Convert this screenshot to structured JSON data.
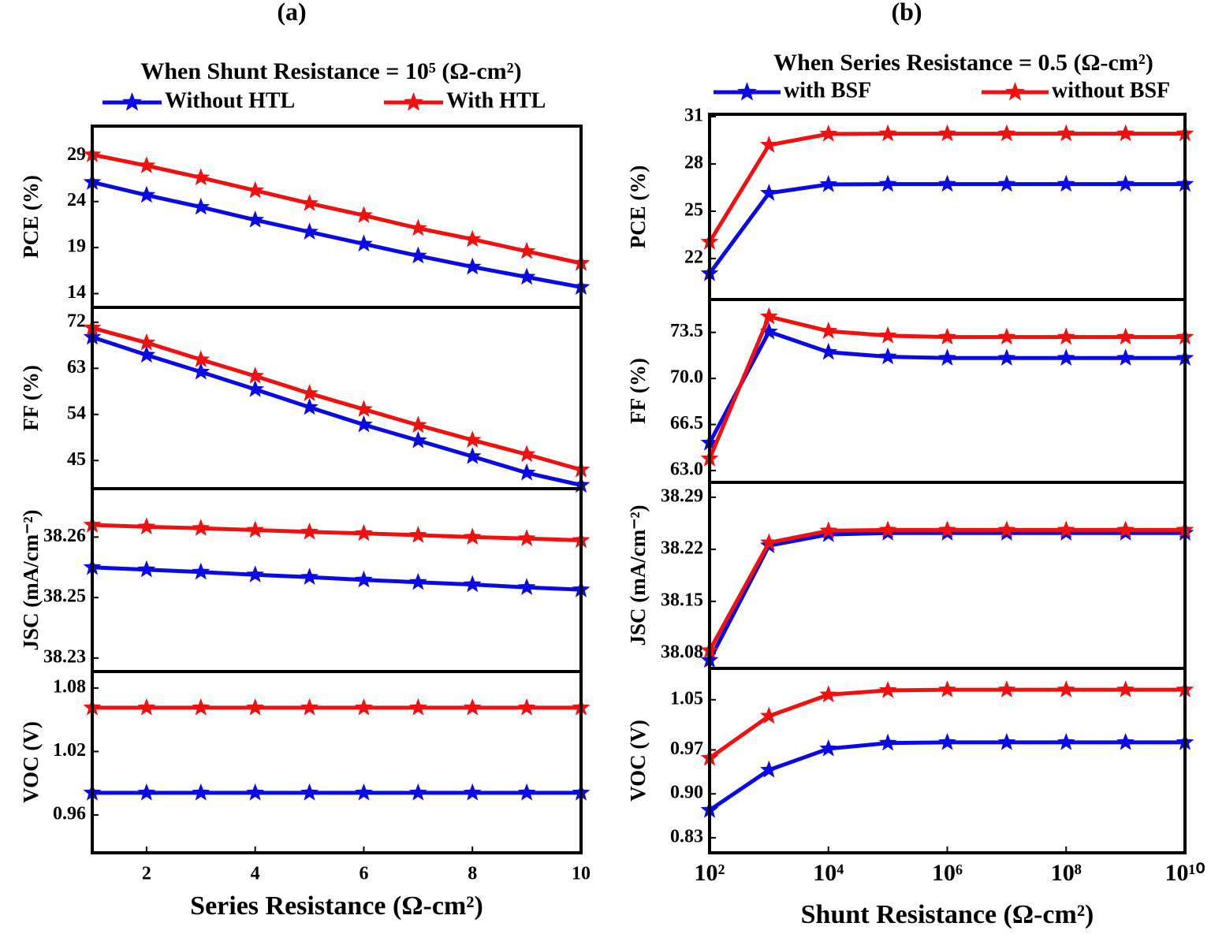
{
  "chart_data": [
    {
      "type": "line",
      "label": "(a)",
      "title": "When Shunt Resistance = 10⁵ (Ω-cm²)",
      "xlabel": "Series Resistance (Ω-cm²)",
      "log_x": false,
      "x": [
        1,
        2,
        3,
        4,
        5,
        6,
        7,
        8,
        9,
        10
      ],
      "xlim": [
        1,
        10
      ],
      "xticks": [
        2,
        4,
        6,
        8,
        10
      ],
      "legend": [
        {
          "name": "Without HTL",
          "color": "#0a0ae6"
        },
        {
          "name": "With HTL",
          "color": "#f01010"
        }
      ],
      "subplots": [
        {
          "ylabel": "PCE (%)",
          "ylim": [
            12.5,
            32.2
          ],
          "yticks": [
            14,
            19,
            24,
            29
          ],
          "series": [
            {
              "values": [
                26.1,
                24.7,
                23.4,
                22.0,
                20.7,
                19.4,
                18.1,
                16.9,
                15.8,
                14.7
              ]
            },
            {
              "values": [
                29.1,
                27.9,
                26.6,
                25.2,
                23.8,
                22.5,
                21.1,
                19.9,
                18.6,
                17.3
              ]
            }
          ]
        },
        {
          "ylabel": "FF (%)",
          "ylim": [
            39.5,
            74.9
          ],
          "yticks": [
            45,
            54,
            63,
            72
          ],
          "series": [
            {
              "values": [
                69.1,
                65.6,
                62.3,
                58.9,
                55.4,
                52.0,
                48.9,
                45.8,
                42.6,
                40.2
              ]
            },
            {
              "values": [
                70.9,
                68.0,
                64.7,
                61.5,
                58.1,
                55.0,
                51.9,
                49.0,
                46.2,
                43.2
              ]
            }
          ]
        },
        {
          "ylabel": "JSC (mA/cm⁻²)",
          "ylim": [
            38.2311,
            38.2704
          ],
          "yticks": [
            {
              "value": 38.234,
              "label": "38.23"
            },
            {
              "value": 38.247,
              "label": "38.25"
            },
            {
              "value": 38.26,
              "label": "38.26"
            }
          ],
          "series": [
            {
              "values": [
                38.2535,
                38.253,
                38.2525,
                38.2519,
                38.2514,
                38.2508,
                38.2503,
                38.2498,
                38.2492,
                38.2487
              ]
            },
            {
              "values": [
                38.2626,
                38.2622,
                38.2619,
                38.2615,
                38.2611,
                38.2608,
                38.2604,
                38.26,
                38.2597,
                38.2593
              ]
            }
          ]
        },
        {
          "ylabel": "VOC (V)",
          "ylim": [
            0.9242,
            1.0956
          ],
          "yticks": [
            0.96,
            1.02,
            1.08
          ],
          "series": [
            {
              "values": [
                0.9809,
                0.9809,
                0.9809,
                0.9809,
                0.9809,
                0.9809,
                0.9809,
                0.9809,
                0.9809,
                0.9809
              ]
            },
            {
              "values": [
                1.0614,
                1.0614,
                1.0614,
                1.0614,
                1.0614,
                1.0614,
                1.0614,
                1.0614,
                1.0614,
                1.0614
              ]
            }
          ]
        }
      ]
    },
    {
      "type": "line",
      "label": "(b)",
      "title": "When Series Resistance = 0.5 (Ω-cm²)",
      "xlabel": "Shunt Resistance (Ω-cm²)",
      "log_x": true,
      "x": [
        100,
        1000,
        10000,
        100000,
        1000000,
        10000000,
        100000000,
        1000000000,
        10000000000
      ],
      "xlim": [
        100,
        10000000000
      ],
      "xticks": [
        {
          "value": 100,
          "label": "10²"
        },
        {
          "value": 10000,
          "label": "10⁴"
        },
        {
          "value": 1000000,
          "label": "10⁶"
        },
        {
          "value": 100000000,
          "label": "10⁸"
        },
        {
          "value": 10000000000,
          "label": "10¹⁰"
        }
      ],
      "legend": [
        {
          "name": "with BSF",
          "color": "#0a0ae6"
        },
        {
          "name": "without BSF",
          "color": "#f01010"
        }
      ],
      "subplots": [
        {
          "ylabel": "PCE (%)",
          "ylim": [
            19.4,
            31.15
          ],
          "yticks": [
            22,
            25,
            28,
            31
          ],
          "series": [
            {
              "values": [
                21.05,
                26.15,
                26.7,
                26.72,
                26.72,
                26.72,
                26.72,
                26.72,
                26.72
              ]
            },
            {
              "values": [
                23.05,
                29.2,
                29.9,
                29.92,
                29.92,
                29.92,
                29.92,
                29.92,
                29.92
              ]
            }
          ]
        },
        {
          "ylabel": "FF (%)",
          "ylim": [
            62.1,
            76.0
          ],
          "yticks": [
            {
              "value": 63,
              "label": "63.0"
            },
            66.5,
            {
              "value": 70,
              "label": "70.0"
            },
            73.5
          ],
          "series": [
            {
              "values": [
                65.1,
                73.55,
                72.0,
                71.65,
                71.55,
                71.55,
                71.55,
                71.55,
                71.55
              ]
            },
            {
              "values": [
                63.9,
                74.7,
                73.6,
                73.25,
                73.15,
                73.15,
                73.15,
                73.15,
                73.15
              ]
            }
          ]
        },
        {
          "ylabel": "JSC (mA/cm⁻²)",
          "ylim": [
            38.06,
            38.31
          ],
          "yticks": [
            38.08,
            38.15,
            38.22,
            38.29
          ],
          "series": [
            {
              "values": [
                38.071,
                38.225,
                38.24,
                38.242,
                38.242,
                38.242,
                38.242,
                38.242,
                38.242
              ]
            },
            {
              "values": [
                38.084,
                38.229,
                38.245,
                38.246,
                38.246,
                38.246,
                38.246,
                38.246,
                38.246
              ]
            }
          ]
        },
        {
          "ylabel": "VOC (V)",
          "ylim": [
            0.806,
            1.1
          ],
          "yticks": [
            0.83,
            {
              "value": 0.9,
              "label": "0.90"
            },
            0.97,
            1.05
          ],
          "series": [
            {
              "values": [
                0.874,
                0.938,
                0.972,
                0.981,
                0.982,
                0.982,
                0.982,
                0.982,
                0.982
              ]
            },
            {
              "values": [
                0.957,
                1.024,
                1.058,
                1.065,
                1.066,
                1.066,
                1.066,
                1.066,
                1.066
              ]
            }
          ]
        }
      ]
    }
  ]
}
